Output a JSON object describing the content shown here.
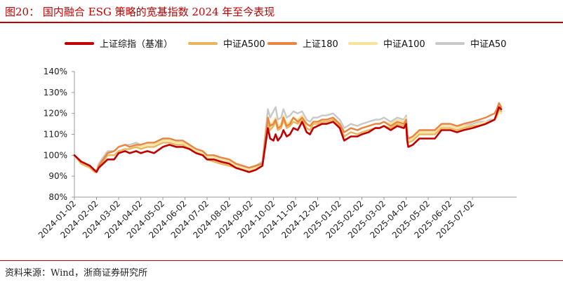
{
  "title": "图20： 国内融合 ESG 策略的宽基指数 2024 年至今表现",
  "source": "资料来源：Wind，浙商证券研究所",
  "colors": {
    "accent": "#c00000",
    "series": [
      "#c00000",
      "#e8b55b",
      "#e98540",
      "#f7e49a",
      "#c8c8c8"
    ]
  },
  "chart_data": {
    "type": "line",
    "title": "国内融合 ESG 策略的宽基指数 2024 年至今表现",
    "xlabel": "",
    "ylabel": "",
    "ylim": [
      80,
      140
    ],
    "yticks": [
      "80%",
      "90%",
      "100%",
      "110%",
      "120%",
      "130%",
      "140%"
    ],
    "xticks": [
      "2024-01-02",
      "2024-02-02",
      "2024-03-02",
      "2024-04-02",
      "2024-05-02",
      "2024-06-02",
      "2024-07-02",
      "2024-08-02",
      "2024-09-02",
      "2024-10-02",
      "2024-11-02",
      "2024-12-02",
      "2025-01-02",
      "2025-02-02",
      "2025-03-02",
      "2025-04-02",
      "2025-05-02",
      "2025-06-02",
      "2025-07-02"
    ],
    "legend_position": "top",
    "x_months": [
      0,
      0.3,
      0.5,
      0.7,
      0.9,
      1.0,
      1.1,
      1.3,
      1.5,
      1.8,
      2.0,
      2.3,
      2.5,
      2.8,
      3.0,
      3.3,
      3.6,
      4.0,
      4.3,
      4.6,
      4.9,
      5.2,
      5.5,
      5.8,
      6.0,
      6.3,
      6.6,
      7.0,
      7.3,
      7.6,
      7.9,
      8.2,
      8.5,
      8.75,
      8.85,
      9.0,
      9.1,
      9.2,
      9.35,
      9.45,
      9.6,
      9.75,
      9.9,
      10.1,
      10.3,
      10.5,
      10.65,
      10.8,
      11.0,
      11.2,
      11.4,
      11.7,
      12.0,
      12.2,
      12.5,
      12.8,
      13.0,
      13.3,
      13.6,
      13.8,
      14.0,
      14.3,
      14.6,
      14.9,
      15.0,
      15.05,
      15.1,
      15.3,
      15.6,
      16.0,
      16.3,
      16.6,
      17.0,
      17.3,
      17.6,
      18.0,
      18.3,
      18.6,
      18.8,
      19.0,
      19.1,
      19.2,
      19.3
    ],
    "series": [
      {
        "name": "上证综指（基准）",
        "values": [
          100,
          97,
          96,
          95,
          93,
          92,
          94,
          96,
          98,
          98,
          101,
          102,
          101,
          102,
          101,
          102,
          101,
          104,
          105,
          104,
          104,
          103,
          101,
          100,
          98,
          98,
          97,
          96,
          94,
          93,
          92,
          93,
          95,
          113,
          108,
          107,
          110,
          107,
          109,
          112,
          109,
          110,
          113,
          112,
          116,
          111,
          110,
          113,
          114,
          115,
          115,
          116,
          113,
          107,
          109,
          109,
          110,
          111,
          113,
          113,
          114,
          112,
          114,
          113,
          115,
          107,
          104,
          105,
          108,
          108,
          108,
          112,
          112,
          111,
          112,
          113,
          114,
          115,
          116,
          117,
          120,
          123,
          122
        ]
      },
      {
        "name": "中证A500",
        "values": [
          100,
          96,
          95,
          94,
          92,
          92,
          94,
          97,
          100,
          100,
          102,
          103,
          103,
          104,
          103,
          104,
          104,
          106,
          106,
          105,
          105,
          103,
          101,
          100,
          98,
          97,
          96,
          95,
          94,
          93,
          92,
          93,
          95,
          116,
          112,
          114,
          116,
          112,
          113,
          117,
          113,
          114,
          116,
          115,
          117,
          113,
          112,
          115,
          115,
          116,
          116,
          117,
          114,
          109,
          111,
          110,
          111,
          112,
          113,
          113,
          114,
          113,
          115,
          114,
          116,
          108,
          106,
          107,
          110,
          110,
          110,
          113,
          113,
          112,
          113,
          114,
          114,
          115,
          116,
          117,
          119,
          122,
          121
        ]
      },
      {
        "name": "上证180",
        "values": [
          100,
          97,
          96,
          95,
          93,
          92,
          95,
          98,
          101,
          102,
          104,
          105,
          104,
          105,
          105,
          106,
          106,
          108,
          108,
          107,
          107,
          105,
          103,
          102,
          100,
          100,
          99,
          98,
          96,
          95,
          94,
          95,
          96,
          118,
          114,
          115,
          117,
          113,
          114,
          118,
          114,
          115,
          118,
          116,
          118,
          115,
          114,
          116,
          116,
          117,
          117,
          118,
          115,
          111,
          113,
          112,
          113,
          114,
          115,
          115,
          116,
          114,
          116,
          115,
          117,
          110,
          108,
          109,
          112,
          112,
          112,
          115,
          115,
          114,
          115,
          116,
          117,
          118,
          119,
          120,
          122,
          125,
          123
        ]
      },
      {
        "name": "中证A100",
        "values": [
          100,
          97,
          96,
          95,
          93,
          93,
          95,
          98,
          101,
          102,
          104,
          105,
          104,
          105,
          104,
          105,
          105,
          107,
          107,
          106,
          106,
          104,
          102,
          101,
          99,
          99,
          98,
          97,
          95,
          94,
          93,
          94,
          96,
          118,
          114,
          116,
          118,
          114,
          115,
          119,
          115,
          116,
          118,
          117,
          119,
          115,
          114,
          116,
          116,
          117,
          117,
          118,
          115,
          111,
          113,
          112,
          113,
          114,
          115,
          115,
          116,
          115,
          117,
          116,
          118,
          109,
          107,
          108,
          111,
          111,
          111,
          114,
          114,
          113,
          114,
          114,
          115,
          116,
          116,
          117,
          118,
          121,
          120
        ]
      },
      {
        "name": "中证A50",
        "values": [
          100,
          97,
          96,
          95,
          93,
          93,
          96,
          99,
          102,
          102,
          104,
          105,
          105,
          106,
          105,
          106,
          106,
          108,
          108,
          107,
          107,
          105,
          103,
          102,
          100,
          100,
          99,
          98,
          96,
          95,
          94,
          95,
          97,
          122,
          118,
          121,
          123,
          117,
          118,
          122,
          118,
          119,
          121,
          120,
          121,
          117,
          116,
          118,
          118,
          119,
          119,
          120,
          117,
          113,
          115,
          114,
          115,
          116,
          117,
          117,
          118,
          116,
          118,
          117,
          119,
          110,
          108,
          109,
          112,
          112,
          112,
          115,
          115,
          114,
          114,
          115,
          116,
          116,
          117,
          117,
          119,
          122,
          121
        ]
      }
    ]
  }
}
